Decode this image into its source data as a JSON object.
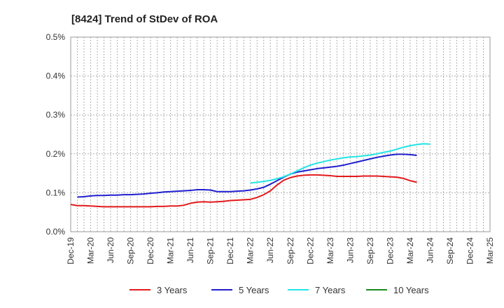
{
  "chart_data": {
    "type": "line",
    "title": "[8424]  Trend of StDev of ROA",
    "xlabel": "",
    "ylabel": "",
    "ylim": [
      0,
      0.5
    ],
    "yticks": [
      0,
      0.1,
      0.2,
      0.3,
      0.4,
      0.5
    ],
    "ytick_labels": [
      "0.0%",
      "0.1%",
      "0.2%",
      "0.3%",
      "0.4%",
      "0.5%"
    ],
    "x_labels": [
      "Dec-19",
      "Mar-20",
      "Jun-20",
      "Sep-20",
      "Dec-20",
      "Mar-21",
      "Jun-21",
      "Sep-21",
      "Dec-21",
      "Mar-22",
      "Jun-22",
      "Sep-22",
      "Dec-22",
      "Mar-23",
      "Jun-23",
      "Sep-23",
      "Dec-23",
      "Mar-24",
      "Jun-24",
      "Sep-24",
      "Dec-24",
      "Mar-25"
    ],
    "grid": true,
    "legend_position": "bottom",
    "series": [
      {
        "name": "3 Years",
        "color": "#e31a1c",
        "start_index": 0,
        "values": [
          0.07,
          0.067,
          0.067,
          0.066,
          0.065,
          0.064,
          0.064,
          0.064,
          0.064,
          0.064,
          0.064,
          0.064,
          0.064,
          0.065,
          0.065,
          0.066,
          0.066,
          0.068,
          0.073,
          0.076,
          0.077,
          0.076,
          0.077,
          0.078,
          0.08,
          0.081,
          0.082,
          0.083,
          0.088,
          0.095,
          0.105,
          0.12,
          0.132,
          0.139,
          0.143,
          0.145,
          0.146,
          0.146,
          0.145,
          0.144,
          0.142,
          0.142,
          0.142,
          0.142,
          0.143,
          0.143,
          0.143,
          0.142,
          0.141,
          0.14,
          0.137,
          0.131,
          0.127
        ]
      },
      {
        "name": "5 Years",
        "color": "#1f1fcf",
        "start_index": 1,
        "values": [
          0.089,
          0.09,
          0.092,
          0.093,
          0.093,
          0.094,
          0.094,
          0.095,
          0.095,
          0.096,
          0.097,
          0.099,
          0.1,
          0.102,
          0.103,
          0.104,
          0.105,
          0.106,
          0.108,
          0.108,
          0.107,
          0.103,
          0.103,
          0.103,
          0.104,
          0.105,
          0.107,
          0.11,
          0.114,
          0.122,
          0.131,
          0.14,
          0.148,
          0.153,
          0.156,
          0.159,
          0.162,
          0.164,
          0.166,
          0.168,
          0.171,
          0.175,
          0.179,
          0.183,
          0.187,
          0.191,
          0.194,
          0.197,
          0.199,
          0.199,
          0.198,
          0.196
        ]
      },
      {
        "name": "7 Years",
        "color": "#22e5e5",
        "start_index": 27,
        "values": [
          0.125,
          0.127,
          0.129,
          0.132,
          0.136,
          0.141,
          0.148,
          0.156,
          0.164,
          0.171,
          0.176,
          0.18,
          0.184,
          0.187,
          0.19,
          0.192,
          0.193,
          0.195,
          0.197,
          0.2,
          0.204,
          0.207,
          0.212,
          0.217,
          0.221,
          0.224,
          0.226,
          0.225
        ]
      },
      {
        "name": "10 Years",
        "color": "#1a8a1a",
        "start_index": 0,
        "values": []
      }
    ]
  }
}
